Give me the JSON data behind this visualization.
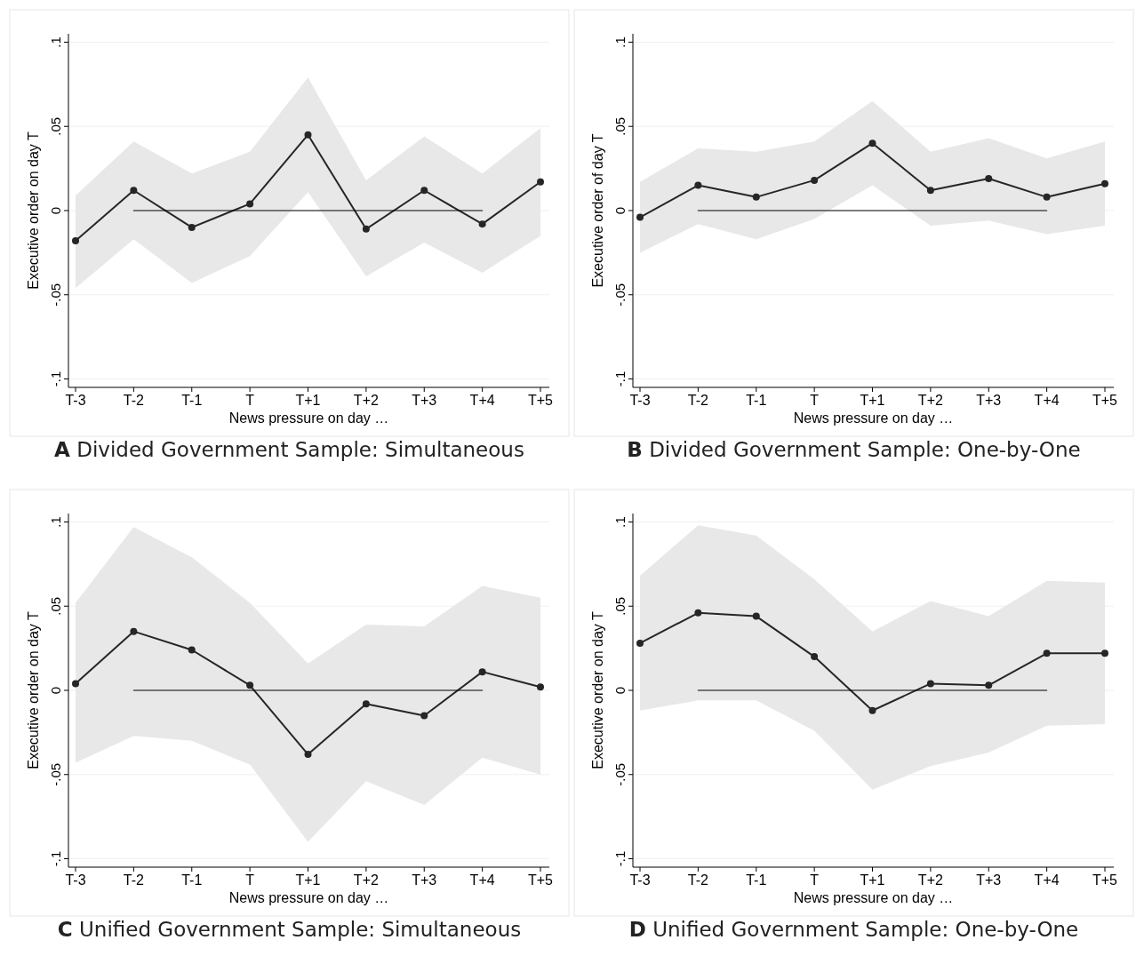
{
  "chart_data": [
    {
      "type": "line",
      "title": "A  Divided Government Sample: Simultaneous",
      "xlabel": "News pressure on day …",
      "ylabel": "Executive order on day T",
      "categories": [
        "T-3",
        "T-2",
        "T-1",
        "T",
        "T+1",
        "T+2",
        "T+3",
        "T+4",
        "T+5"
      ],
      "ylim": [
        -0.105,
        0.105
      ],
      "yticks": [
        {
          "value": -0.1,
          "label": "-.1"
        },
        {
          "value": -0.05,
          "label": "-.05"
        },
        {
          "value": 0,
          "label": "0"
        },
        {
          "value": 0.05,
          "label": ".05"
        },
        {
          "value": 0.1,
          "label": ".1"
        }
      ],
      "grid": "y",
      "marker": "circle",
      "series": [
        {
          "color": "#262626",
          "values": [
            -0.018,
            0.012,
            -0.01,
            0.004,
            0.045,
            -0.011,
            0.012,
            -0.008,
            0.017
          ],
          "lower": [
            -0.046,
            -0.017,
            -0.043,
            -0.027,
            0.011,
            -0.039,
            -0.019,
            -0.037,
            -0.015
          ],
          "upper": [
            0.009,
            0.041,
            0.022,
            0.035,
            0.079,
            0.018,
            0.044,
            0.022,
            0.049
          ]
        },
        {
          "color": "#000000",
          "marker": "none",
          "values": [
            null,
            0,
            0,
            0,
            0,
            0,
            0,
            0,
            null
          ]
        }
      ]
    },
    {
      "type": "line",
      "title": "B  Divided Government Sample: One-by-One",
      "xlabel": "News pressure on day …",
      "ylabel": "Executive order of day T",
      "categories": [
        "T-3",
        "T-2",
        "T-1",
        "T",
        "T+1",
        "T+2",
        "T+3",
        "T+4",
        "T+5"
      ],
      "ylim": [
        -0.105,
        0.105
      ],
      "yticks": [
        {
          "value": -0.1,
          "label": "-.1"
        },
        {
          "value": -0.05,
          "label": "-.05"
        },
        {
          "value": 0,
          "label": "0"
        },
        {
          "value": 0.05,
          "label": ".05"
        },
        {
          "value": 0.1,
          "label": ".1"
        }
      ],
      "grid": "y",
      "marker": "circle",
      "series": [
        {
          "color": "#262626",
          "values": [
            -0.004,
            0.015,
            0.008,
            0.018,
            0.04,
            0.012,
            0.019,
            0.008,
            0.016
          ],
          "lower": [
            -0.025,
            -0.008,
            -0.017,
            -0.005,
            0.015,
            -0.009,
            -0.006,
            -0.014,
            -0.009
          ],
          "upper": [
            0.017,
            0.037,
            0.035,
            0.041,
            0.065,
            0.035,
            0.043,
            0.031,
            0.041
          ]
        },
        {
          "color": "#000000",
          "marker": "none",
          "values": [
            null,
            0,
            0,
            0,
            0,
            0,
            0,
            0,
            null
          ]
        }
      ]
    },
    {
      "type": "line",
      "title": "C  Unified Government Sample: Simultaneous",
      "xlabel": "News pressure on day …",
      "ylabel": "Executive order on day T",
      "categories": [
        "T-3",
        "T-2",
        "T-1",
        "T",
        "T+1",
        "T+2",
        "T+3",
        "T+4",
        "T+5"
      ],
      "ylim": [
        -0.105,
        0.105
      ],
      "yticks": [
        {
          "value": -0.1,
          "label": "-.1"
        },
        {
          "value": -0.05,
          "label": "-.05"
        },
        {
          "value": 0,
          "label": "0"
        },
        {
          "value": 0.05,
          "label": ".05"
        },
        {
          "value": 0.1,
          "label": ".1"
        }
      ],
      "grid": "y",
      "marker": "circle",
      "series": [
        {
          "color": "#262626",
          "values": [
            0.004,
            0.035,
            0.024,
            0.003,
            -0.038,
            -0.008,
            -0.015,
            0.011,
            0.002
          ],
          "lower": [
            -0.043,
            -0.027,
            -0.03,
            -0.044,
            -0.09,
            -0.054,
            -0.068,
            -0.04,
            -0.05
          ],
          "upper": [
            0.052,
            0.097,
            0.079,
            0.052,
            0.016,
            0.039,
            0.038,
            0.062,
            0.055
          ]
        },
        {
          "color": "#000000",
          "marker": "none",
          "values": [
            null,
            0,
            0,
            0,
            0,
            0,
            0,
            0,
            null
          ]
        }
      ]
    },
    {
      "type": "line",
      "title": "D  Unified Government Sample: One-by-One",
      "xlabel": "News pressure on day …",
      "ylabel": "Executive order on day T",
      "categories": [
        "T-3",
        "T-2",
        "T-1",
        "T",
        "T+1",
        "T+2",
        "T+3",
        "T+4",
        "T+5"
      ],
      "ylim": [
        -0.105,
        0.105
      ],
      "yticks": [
        {
          "value": -0.1,
          "label": "-.1"
        },
        {
          "value": -0.05,
          "label": "-.05"
        },
        {
          "value": 0,
          "label": "0"
        },
        {
          "value": 0.05,
          "label": ".05"
        },
        {
          "value": 0.1,
          "label": ".1"
        }
      ],
      "grid": "y",
      "marker": "circle",
      "series": [
        {
          "color": "#262626",
          "values": [
            0.028,
            0.046,
            0.044,
            0.02,
            -0.012,
            0.004,
            0.003,
            0.022,
            0.022
          ],
          "lower": [
            -0.012,
            -0.006,
            -0.006,
            -0.024,
            -0.059,
            -0.045,
            -0.037,
            -0.021,
            -0.02
          ],
          "upper": [
            0.068,
            0.098,
            0.092,
            0.066,
            0.035,
            0.053,
            0.044,
            0.065,
            0.064
          ]
        },
        {
          "color": "#000000",
          "marker": "none",
          "values": [
            null,
            0,
            0,
            0,
            0,
            0,
            0,
            0,
            null
          ]
        }
      ]
    }
  ]
}
